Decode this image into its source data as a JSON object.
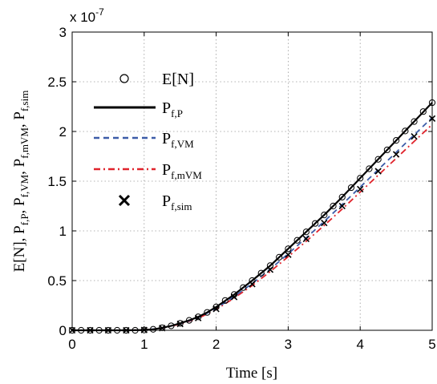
{
  "chart_data": {
    "type": "line",
    "xlabel": "Time [s]",
    "ylabel": "E[N], P_f,P, P_f,VM, P_f,mVM, P_f,sim",
    "ylabel_parts": {
      "p1": "E[N], P",
      "s1": "f,P",
      "p2": ", P",
      "s2": "f,VM",
      "p3": ", P",
      "s3": "f,mVM",
      "p4": ", P",
      "s4": "f,sim"
    },
    "y_multiplier": "x 10",
    "y_multiplier_exp": "-7",
    "xlim": [
      0,
      5
    ],
    "ylim": [
      0,
      3
    ],
    "xticks": [
      0,
      1,
      2,
      3,
      4,
      5
    ],
    "xtick_labels": [
      "0",
      "1",
      "2",
      "3",
      "4",
      "5"
    ],
    "yticks": [
      0,
      0.5,
      1,
      1.5,
      2,
      2.5,
      3
    ],
    "ytick_labels": [
      "0",
      "0.5",
      "1",
      "1.5",
      "2",
      "2.5",
      "3"
    ],
    "grid": true,
    "legend_position": "top-left",
    "series": [
      {
        "name": "E[N]",
        "legend_main": "E[N]",
        "legend_sub": "",
        "style": "circle-markers",
        "color": "#000000",
        "x": [
          0,
          0.125,
          0.25,
          0.375,
          0.5,
          0.625,
          0.75,
          0.875,
          1,
          1.125,
          1.25,
          1.375,
          1.5,
          1.625,
          1.75,
          1.875,
          2,
          2.125,
          2.25,
          2.375,
          2.5,
          2.625,
          2.75,
          2.875,
          3,
          3.125,
          3.25,
          3.375,
          3.5,
          3.625,
          3.75,
          3.875,
          4,
          4.125,
          4.25,
          4.375,
          4.5,
          4.625,
          4.75,
          4.875,
          5
        ],
        "y": [
          0,
          0,
          0,
          0,
          0,
          0,
          0,
          0,
          0.003,
          0.01,
          0.025,
          0.045,
          0.07,
          0.1,
          0.135,
          0.18,
          0.235,
          0.3,
          0.36,
          0.43,
          0.5,
          0.575,
          0.65,
          0.735,
          0.82,
          0.905,
          0.99,
          1.075,
          1.16,
          1.25,
          1.34,
          1.435,
          1.53,
          1.625,
          1.72,
          1.815,
          1.91,
          2.005,
          2.1,
          2.2,
          2.29
        ]
      },
      {
        "name": "P_f,P",
        "legend_main": "P",
        "legend_sub": "f,P",
        "style": "solid",
        "color": "#000000",
        "x": [
          0,
          0.25,
          0.5,
          0.75,
          1,
          1.125,
          1.25,
          1.375,
          1.5,
          1.625,
          1.75,
          1.875,
          2,
          2.25,
          2.5,
          2.75,
          3,
          3.25,
          3.5,
          3.75,
          4,
          4.25,
          4.5,
          4.75,
          5
        ],
        "y": [
          0,
          0,
          0,
          0,
          0.003,
          0.01,
          0.025,
          0.045,
          0.07,
          0.1,
          0.135,
          0.18,
          0.235,
          0.36,
          0.5,
          0.65,
          0.82,
          0.99,
          1.16,
          1.34,
          1.53,
          1.72,
          1.91,
          2.1,
          2.29
        ]
      },
      {
        "name": "P_f,VM",
        "legend_main": "P",
        "legend_sub": "f,VM",
        "style": "dashed",
        "color": "#3c5ca8",
        "x": [
          0,
          0.25,
          0.5,
          0.75,
          1,
          1.25,
          1.5,
          1.75,
          2,
          2.25,
          2.5,
          2.75,
          3,
          3.25,
          3.5,
          3.75,
          4,
          4.25,
          4.5,
          4.75,
          5
        ],
        "y": [
          0,
          0,
          0,
          0,
          0.003,
          0.022,
          0.065,
          0.125,
          0.22,
          0.34,
          0.47,
          0.615,
          0.77,
          0.93,
          1.095,
          1.265,
          1.44,
          1.615,
          1.79,
          1.965,
          2.14
        ]
      },
      {
        "name": "P_f,mVM",
        "legend_main": "P",
        "legend_sub": "f,mVM",
        "style": "dashdot",
        "color": "#e0242c",
        "x": [
          0,
          0.25,
          0.5,
          0.75,
          1,
          1.25,
          1.5,
          1.75,
          2,
          2.25,
          2.5,
          2.75,
          3,
          3.25,
          3.5,
          3.75,
          4,
          4.25,
          4.5,
          4.75,
          5
        ],
        "y": [
          0,
          0,
          0,
          0,
          0.003,
          0.021,
          0.062,
          0.12,
          0.21,
          0.325,
          0.45,
          0.59,
          0.74,
          0.895,
          1.055,
          1.22,
          1.39,
          1.56,
          1.73,
          1.9,
          2.07
        ]
      },
      {
        "name": "P_f,sim",
        "legend_main": "P",
        "legend_sub": "f,sim",
        "style": "x-markers",
        "color": "#000000",
        "x": [
          0,
          0.25,
          0.5,
          0.75,
          1,
          1.25,
          1.5,
          1.75,
          2,
          2.25,
          2.5,
          2.75,
          3,
          3.25,
          3.5,
          3.75,
          4,
          4.25,
          4.5,
          4.75,
          5
        ],
        "y": [
          0,
          0,
          0,
          0,
          0.003,
          0.022,
          0.064,
          0.123,
          0.215,
          0.335,
          0.465,
          0.61,
          0.76,
          0.92,
          1.08,
          1.25,
          1.42,
          1.6,
          1.77,
          1.95,
          2.13
        ]
      }
    ]
  }
}
